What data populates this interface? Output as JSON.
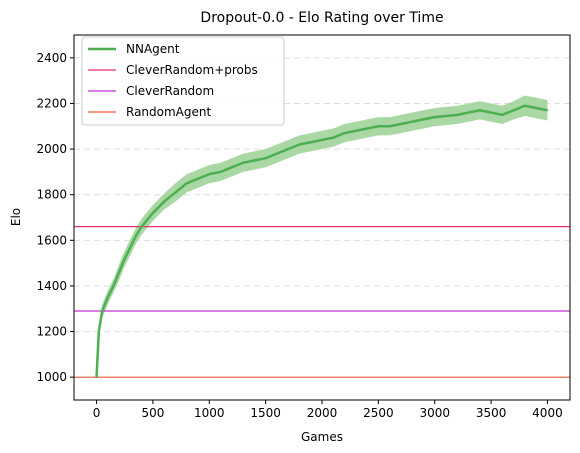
{
  "chart_data": {
    "type": "line",
    "title": "Dropout-0.0 - Elo Rating over Time",
    "xlabel": "Games",
    "ylabel": "Elo",
    "xlim": [
      -200,
      4200
    ],
    "ylim": [
      900,
      2500
    ],
    "xticks": [
      0,
      500,
      1000,
      1500,
      2000,
      2500,
      3000,
      3500,
      4000
    ],
    "yticks": [
      1000,
      1200,
      1400,
      1600,
      1800,
      2000,
      2200,
      2400
    ],
    "grid": "horizontal dashed",
    "legend_position": "top-left",
    "series": [
      {
        "name": "NNAgent",
        "kind": "line-with-band",
        "color": "#4caf50",
        "band_color": "#a5d6a0",
        "x": [
          0,
          20,
          50,
          100,
          150,
          200,
          250,
          300,
          350,
          400,
          450,
          500,
          600,
          700,
          800,
          900,
          1000,
          1100,
          1200,
          1300,
          1400,
          1500,
          1600,
          1700,
          1800,
          1900,
          2000,
          2100,
          2200,
          2300,
          2400,
          2500,
          2600,
          2700,
          2800,
          2900,
          3000,
          3100,
          3200,
          3300,
          3400,
          3500,
          3600,
          3700,
          3800,
          3900,
          4000
        ],
        "y": [
          1000,
          1200,
          1290,
          1350,
          1400,
          1460,
          1520,
          1570,
          1620,
          1660,
          1690,
          1720,
          1770,
          1810,
          1850,
          1870,
          1890,
          1900,
          1920,
          1940,
          1950,
          1960,
          1980,
          2000,
          2020,
          2030,
          2040,
          2050,
          2070,
          2080,
          2090,
          2100,
          2100,
          2110,
          2120,
          2130,
          2140,
          2145,
          2150,
          2160,
          2170,
          2160,
          2150,
          2170,
          2190,
          2180,
          2170
        ],
        "band_halfwidth": [
          0,
          20,
          30,
          30,
          30,
          35,
          35,
          35,
          35,
          35,
          35,
          35,
          35,
          40,
          40,
          40,
          40,
          40,
          40,
          40,
          40,
          40,
          40,
          40,
          40,
          40,
          40,
          40,
          40,
          40,
          40,
          40,
          40,
          40,
          40,
          40,
          40,
          40,
          40,
          40,
          40,
          40,
          40,
          40,
          45,
          45,
          45
        ]
      },
      {
        "name": "CleverRandom+probs",
        "kind": "hline",
        "value": 1660,
        "color": "#e8306e"
      },
      {
        "name": "CleverRandom",
        "kind": "hline",
        "value": 1290,
        "color": "#c030c8"
      },
      {
        "name": "RandomAgent",
        "kind": "hline",
        "value": 1000,
        "color": "#e85a3c"
      }
    ]
  }
}
